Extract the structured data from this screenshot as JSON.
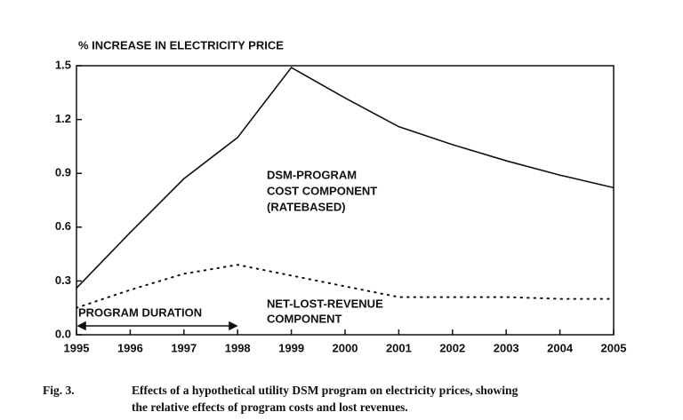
{
  "chart_data": {
    "type": "line",
    "y_label": "% INCREASE IN ELECTRICITY PRICE",
    "x": [
      1995,
      1996,
      1997,
      1998,
      1999,
      2000,
      2001,
      2002,
      2003,
      2004,
      2005
    ],
    "series": [
      {
        "color": "#111111",
        "style": "solid",
        "values": [
          0.26,
          0.57,
          0.87,
          1.1,
          1.49,
          1.32,
          1.16,
          1.06,
          0.97,
          0.89,
          0.82
        ]
      },
      {
        "color": "#111111",
        "style": "dotted",
        "values": [
          0.15,
          0.25,
          0.34,
          0.39,
          0.33,
          0.27,
          0.21,
          0.21,
          0.21,
          0.2,
          0.2
        ]
      }
    ],
    "xlim": [
      1995,
      2005
    ],
    "xticks": [
      1995,
      1996,
      1997,
      1998,
      1999,
      2000,
      2001,
      2002,
      2003,
      2004,
      2005
    ],
    "ylim": [
      0,
      1.5
    ],
    "yticks": [
      {
        "value": 0,
        "label": "0.0"
      },
      0.3,
      0.6,
      0.9,
      1.2,
      1.5
    ],
    "annotations": [
      [
        "DSM-PROGRAM",
        "COST COMPONENT",
        "(RATEBASED)"
      ],
      [
        "NET-LOST-REVENUE",
        "COMPONENT"
      ],
      [
        "PROGRAM DURATION"
      ]
    ],
    "caption": {
      "label": "Fig. 3.",
      "lines": [
        "Effects of a hypothetical utility DSM program on electricity prices, showing",
        "the relative effects of program costs and lost revenues."
      ]
    }
  }
}
